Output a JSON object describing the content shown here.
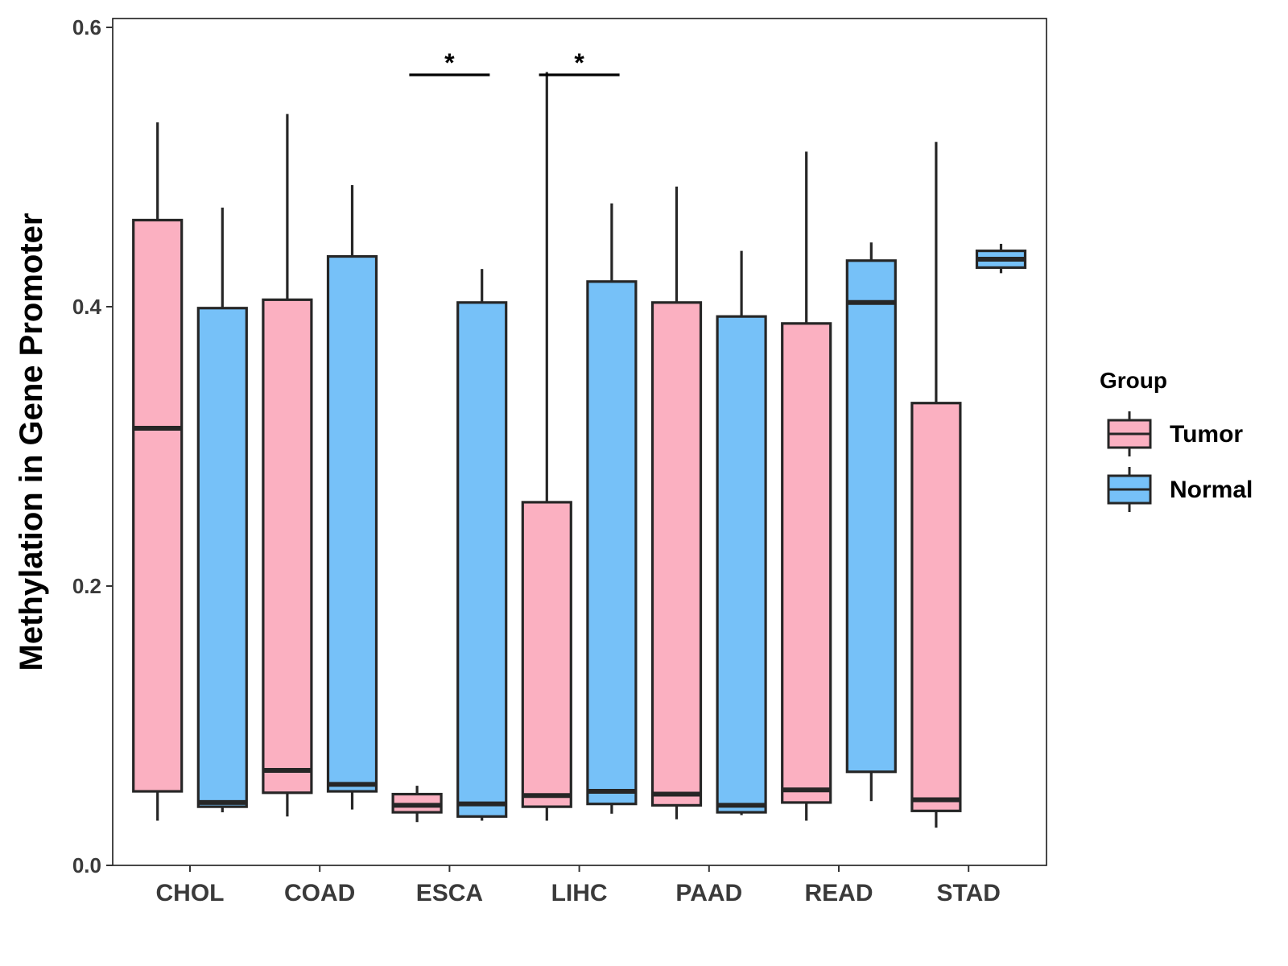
{
  "chart_data": {
    "type": "boxplot",
    "title": "",
    "xlabel": "",
    "ylabel": "Methylation in Gene Promoter",
    "ylim": [
      0.0,
      0.6
    ],
    "yticks": [
      "0.0",
      "0.2",
      "0.4",
      "0.6"
    ],
    "categories": [
      "CHOL",
      "COAD",
      "ESCA",
      "LIHC",
      "PAAD",
      "READ",
      "STAD"
    ],
    "legend": {
      "title": "Group",
      "placement": "right",
      "entries": [
        "Tumor",
        "Normal"
      ]
    },
    "colors": {
      "Tumor": "#FBB0C1",
      "Normal": "#76C1F8",
      "outline": "#262626"
    },
    "series": [
      {
        "name": "Tumor",
        "boxes": [
          {
            "category": "CHOL",
            "min": 0.032,
            "q1": 0.053,
            "median": 0.313,
            "q3": 0.462,
            "max": 0.532
          },
          {
            "category": "COAD",
            "min": 0.035,
            "q1": 0.052,
            "median": 0.068,
            "q3": 0.405,
            "max": 0.538
          },
          {
            "category": "ESCA",
            "min": 0.031,
            "q1": 0.038,
            "median": 0.043,
            "q3": 0.051,
            "max": 0.057
          },
          {
            "category": "LIHC",
            "min": 0.032,
            "q1": 0.042,
            "median": 0.05,
            "q3": 0.26,
            "max": 0.568
          },
          {
            "category": "PAAD",
            "min": 0.033,
            "q1": 0.043,
            "median": 0.051,
            "q3": 0.403,
            "max": 0.486
          },
          {
            "category": "READ",
            "min": 0.032,
            "q1": 0.045,
            "median": 0.054,
            "q3": 0.388,
            "max": 0.511
          },
          {
            "category": "STAD",
            "min": 0.027,
            "q1": 0.039,
            "median": 0.047,
            "q3": 0.331,
            "max": 0.518
          }
        ]
      },
      {
        "name": "Normal",
        "boxes": [
          {
            "category": "CHOL",
            "min": 0.038,
            "q1": 0.042,
            "median": 0.045,
            "q3": 0.399,
            "max": 0.471
          },
          {
            "category": "COAD",
            "min": 0.04,
            "q1": 0.053,
            "median": 0.058,
            "q3": 0.436,
            "max": 0.487
          },
          {
            "category": "ESCA",
            "min": 0.032,
            "q1": 0.035,
            "median": 0.044,
            "q3": 0.403,
            "max": 0.427
          },
          {
            "category": "LIHC",
            "min": 0.037,
            "q1": 0.044,
            "median": 0.053,
            "q3": 0.418,
            "max": 0.474
          },
          {
            "category": "PAAD",
            "min": 0.036,
            "q1": 0.038,
            "median": 0.043,
            "q3": 0.393,
            "max": 0.44
          },
          {
            "category": "READ",
            "min": 0.046,
            "q1": 0.067,
            "median": 0.403,
            "q3": 0.433,
            "max": 0.446
          },
          {
            "category": "STAD",
            "min": 0.424,
            "q1": 0.428,
            "median": 0.434,
            "q3": 0.44,
            "max": 0.445
          }
        ]
      }
    ],
    "annotations": [
      {
        "category": "ESCA",
        "label": "*",
        "y": 0.566
      },
      {
        "category": "LIHC",
        "label": "*",
        "y": 0.566
      }
    ]
  }
}
